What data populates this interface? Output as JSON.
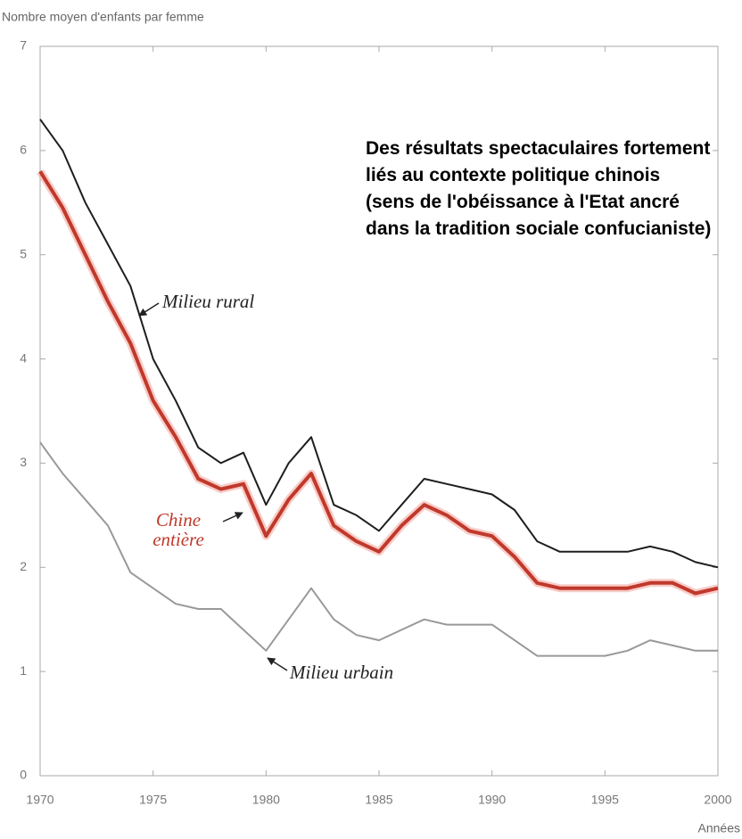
{
  "chart_data": {
    "type": "line",
    "y_label": "Nombre moyen d'enfants par femme",
    "x_label": "Années",
    "annotation": "Des résultats spectaculaires fortement liés au contexte politique chinois (sens de l'obéissance à l'Etat ancré dans la tradition sociale confucianiste)",
    "x": [
      1970,
      1971,
      1972,
      1973,
      1974,
      1975,
      1976,
      1977,
      1978,
      1979,
      1980,
      1981,
      1982,
      1983,
      1984,
      1985,
      1986,
      1987,
      1988,
      1989,
      1990,
      1991,
      1992,
      1993,
      1994,
      1995,
      1996,
      1997,
      1998,
      1999,
      2000
    ],
    "series": [
      {
        "name": "Milieu rural",
        "color": "#1e1e1e",
        "values": [
          6.3,
          6.0,
          5.5,
          5.1,
          4.7,
          4.0,
          3.6,
          3.15,
          3.0,
          3.1,
          2.6,
          3.0,
          3.25,
          2.6,
          2.5,
          2.35,
          2.6,
          2.85,
          2.8,
          2.75,
          2.7,
          2.55,
          2.25,
          2.15,
          2.15,
          2.15,
          2.15,
          2.2,
          2.15,
          2.05,
          2.0
        ]
      },
      {
        "name": "Chine entière",
        "color": "#c0392b",
        "values": [
          5.8,
          5.45,
          5.0,
          4.55,
          4.15,
          3.6,
          3.25,
          2.85,
          2.75,
          2.8,
          2.3,
          2.65,
          2.9,
          2.4,
          2.25,
          2.15,
          2.4,
          2.6,
          2.5,
          2.35,
          2.3,
          2.1,
          1.85,
          1.8,
          1.8,
          1.8,
          1.8,
          1.85,
          1.85,
          1.75,
          1.8
        ]
      },
      {
        "name": "Milieu urbain",
        "color": "#999999",
        "values": [
          3.2,
          2.9,
          2.65,
          2.4,
          1.95,
          1.8,
          1.65,
          1.6,
          1.6,
          1.4,
          1.2,
          1.5,
          1.8,
          1.5,
          1.35,
          1.3,
          1.4,
          1.5,
          1.45,
          1.45,
          1.45,
          1.3,
          1.15,
          1.15,
          1.15,
          1.15,
          1.2,
          1.3,
          1.25,
          1.2,
          1.2
        ]
      }
    ],
    "xlim": [
      1970,
      2000
    ],
    "ylim": [
      0,
      7
    ],
    "xticks": [
      1970,
      1975,
      1980,
      1985,
      1990,
      1995,
      2000
    ],
    "yticks": [
      0,
      1,
      2,
      3,
      4,
      5,
      6,
      7
    ]
  }
}
